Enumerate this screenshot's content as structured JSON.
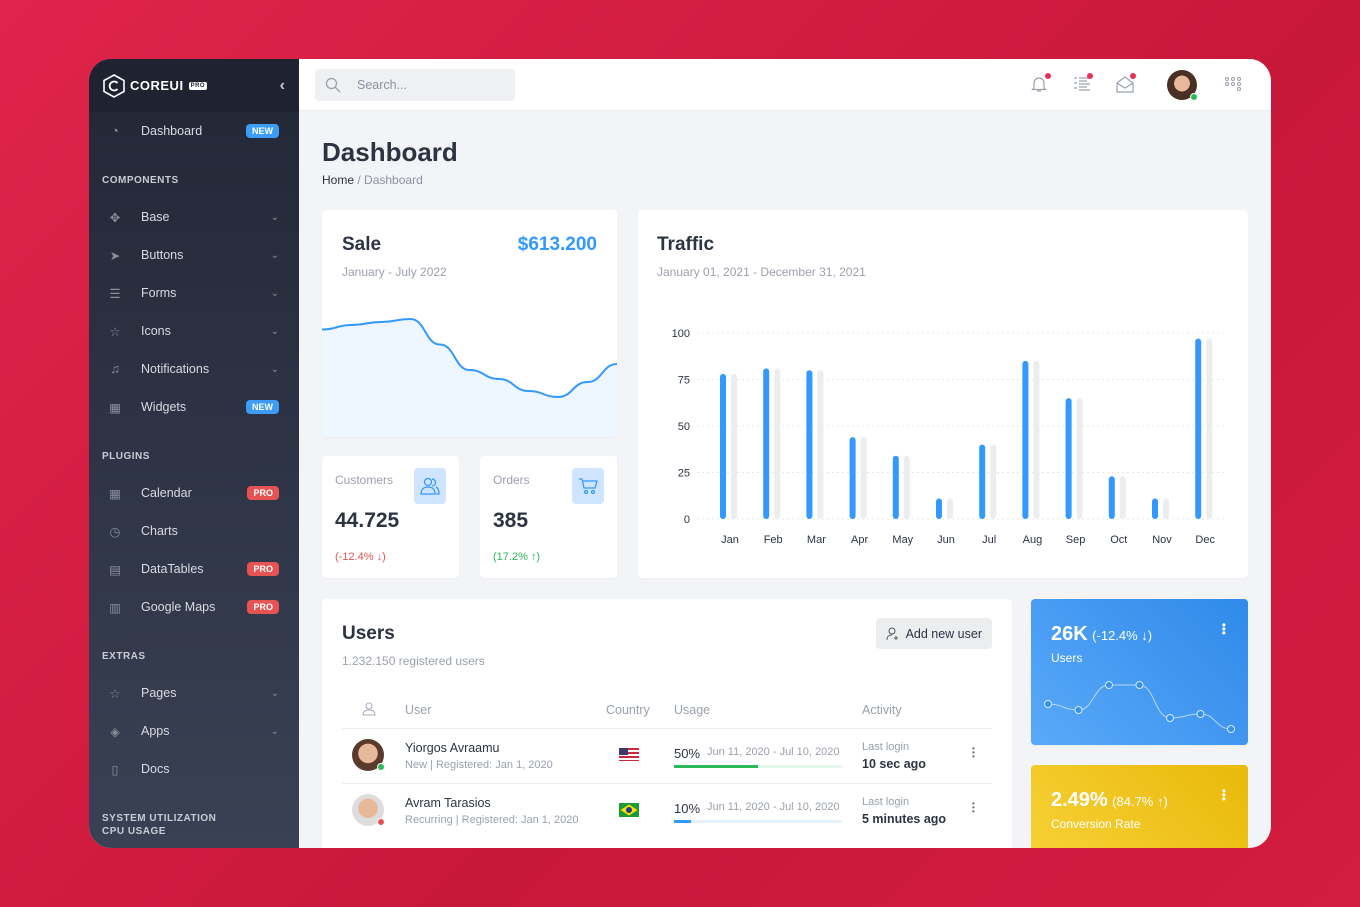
{
  "app": {
    "logo_text": "COREUI",
    "logo_badge": "PRO"
  },
  "sidebar": {
    "top": {
      "label": "Dashboard",
      "badge": "NEW",
      "icon": "speedometer-icon"
    },
    "sections": [
      {
        "title": "COMPONENTS",
        "items": [
          {
            "label": "Base",
            "icon": "puzzle-icon",
            "chevron": true
          },
          {
            "label": "Buttons",
            "icon": "cursor-icon",
            "chevron": true
          },
          {
            "label": "Forms",
            "icon": "notes-icon",
            "chevron": true
          },
          {
            "label": "Icons",
            "icon": "star-icon",
            "chevron": true
          },
          {
            "label": "Notifications",
            "icon": "bell-icon",
            "chevron": true
          },
          {
            "label": "Widgets",
            "icon": "calculator-icon",
            "badge": "NEW"
          }
        ]
      },
      {
        "title": "PLUGINS",
        "items": [
          {
            "label": "Calendar",
            "icon": "calendar-icon",
            "badge": "PRO"
          },
          {
            "label": "Charts",
            "icon": "chart-pie-icon"
          },
          {
            "label": "DataTables",
            "icon": "spreadsheet-icon",
            "badge": "PRO"
          },
          {
            "label": "Google Maps",
            "icon": "map-icon",
            "badge": "PRO"
          }
        ]
      },
      {
        "title": "EXTRAS",
        "items": [
          {
            "label": "Pages",
            "icon": "star-icon",
            "chevron": true
          },
          {
            "label": "Apps",
            "icon": "layers-icon",
            "chevron": true
          },
          {
            "label": "Docs",
            "icon": "description-icon"
          }
        ]
      },
      {
        "title": "SYSTEM UTILIZATION",
        "items": []
      },
      {
        "title": "CPU USAGE",
        "items": []
      }
    ]
  },
  "header": {
    "search_placeholder": "Search..."
  },
  "page": {
    "title": "Dashboard",
    "breadcrumb": [
      "Home",
      "Dashboard"
    ]
  },
  "sale": {
    "title": "Sale",
    "amount": "$613.200",
    "period": "January - July 2022"
  },
  "customers": {
    "label": "Customers",
    "value": "44.725",
    "change": "(-12.4% ↓)"
  },
  "orders": {
    "label": "Orders",
    "value": "385",
    "change": "(17.2% ↑)"
  },
  "traffic": {
    "title": "Traffic",
    "period": "January 01, 2021 - December 31, 2021"
  },
  "users": {
    "title": "Users",
    "subtitle": "1.232.150 registered users",
    "add_button": "Add new user",
    "columns": [
      "User",
      "Country",
      "Usage",
      "Activity"
    ],
    "rows": [
      {
        "name": "Yiorgos Avraamu",
        "meta": "New | Registered: Jan 1, 2020",
        "country": "USA",
        "usage": "50%",
        "usage_value": 50,
        "usage_color": "#2eb85c",
        "period": "Jun 11, 2020 - Jul 10, 2020",
        "activity_label": "Last login",
        "activity": "10 sec ago",
        "status_color": "#2eb85c"
      },
      {
        "name": "Avram Tarasios",
        "meta": "Recurring | Registered: Jan 1, 2020",
        "country": "Brazil",
        "usage": "10%",
        "usage_value": 10,
        "usage_color": "#3399ff",
        "period": "Jun 11, 2020 - Jul 10, 2020",
        "activity_label": "Last login",
        "activity": "5 minutes ago",
        "status_color": "#e55353"
      }
    ]
  },
  "widget_users": {
    "value": "26K",
    "change": "(-12.4% ↓)",
    "label": "Users"
  },
  "widget_conversion": {
    "value": "2.49%",
    "change": "(84.7% ↑)",
    "label": "Conversion Rate"
  },
  "colors": {
    "primary": "#3399ff",
    "danger": "#e55353",
    "success": "#2eb85c",
    "warning": "#f9b115",
    "sidebar": "#2a2f3e"
  },
  "chart_data": [
    {
      "type": "area",
      "values": [
        65,
        68,
        70,
        72,
        55,
        38,
        32,
        24,
        20,
        30,
        42
      ]
    },
    {
      "type": "bar",
      "categories": [
        "Jan",
        "Feb",
        "Mar",
        "Apr",
        "May",
        "Jun",
        "Jul",
        "Aug",
        "Sep",
        "Oct",
        "Nov",
        "Dec"
      ],
      "series": [
        {
          "values": [
            78,
            81,
            80,
            44,
            34,
            11,
            40,
            85,
            65,
            23,
            11,
            97
          ],
          "color": "#3399ff"
        },
        {
          "values": [
            78,
            81,
            80,
            44,
            34,
            11,
            40,
            85,
            65,
            23,
            11,
            97
          ],
          "color": "#ebedef"
        }
      ],
      "yticks": [
        0,
        25,
        50,
        75,
        100
      ],
      "ylim": [
        0,
        100
      ],
      "grid": true
    },
    {
      "type": "line",
      "values": [
        65,
        59,
        84,
        84,
        51,
        55,
        40
      ]
    }
  ]
}
